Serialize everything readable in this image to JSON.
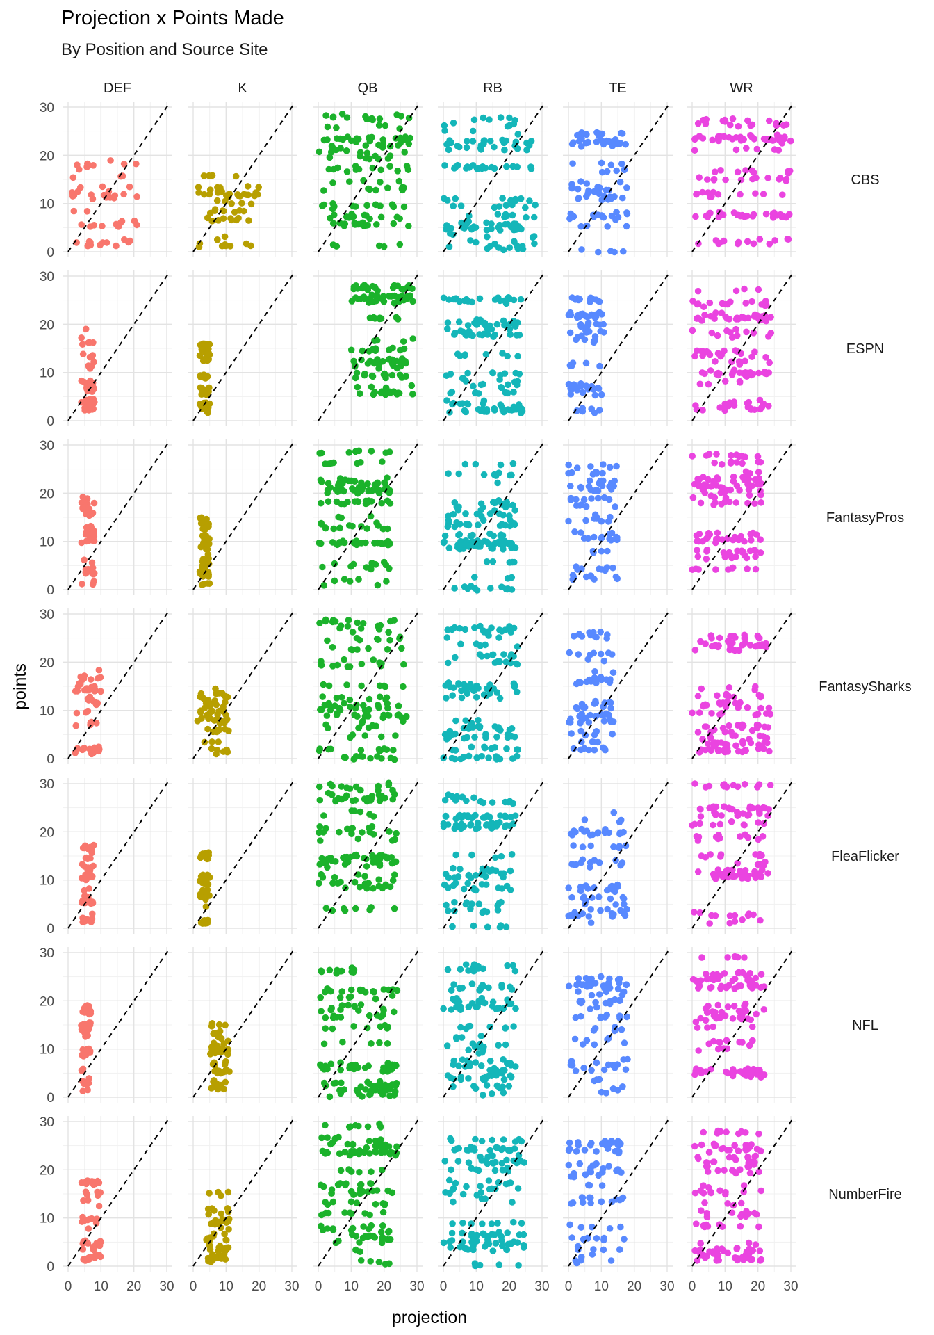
{
  "chart_data": {
    "type": "scatter",
    "title": "Projection x Points Made",
    "subtitle": "By Position and Source Site",
    "xlabel": "projection",
    "ylabel": "points",
    "xlim": [
      0,
      30
    ],
    "ylim": [
      0,
      30
    ],
    "x_ticks": [
      0,
      10,
      20,
      30
    ],
    "y_ticks": [
      0,
      10,
      20,
      30
    ],
    "grid": true,
    "reference_line": "y = x (dashed, black)",
    "facet_columns": [
      "DEF",
      "K",
      "QB",
      "RB",
      "TE",
      "WR"
    ],
    "facet_rows": [
      "CBS",
      "ESPN",
      "FantasyPros",
      "FantasySharks",
      "FleaFlicker",
      "NFL",
      "NumberFire"
    ],
    "position_colors": {
      "DEF": "#f8766d",
      "K": "#b79f00",
      "QB": "#1bb22b",
      "RB": "#14b6b9",
      "TE": "#5889ff",
      "WR": "#ea44e0"
    },
    "panel_ranges": {
      "DEF": {
        "CBS": {
          "x": [
            1,
            21
          ],
          "y": [
            1,
            19
          ]
        },
        "ESPN": {
          "x": [
            4,
            8
          ],
          "y": [
            1,
            19
          ]
        },
        "FantasyPros": {
          "x": [
            4,
            8
          ],
          "y": [
            1,
            19
          ]
        },
        "FantasySharks": {
          "x": [
            2,
            10
          ],
          "y": [
            1,
            19
          ]
        },
        "FleaFlicker": {
          "x": [
            4,
            8
          ],
          "y": [
            1,
            19
          ]
        },
        "NFL": {
          "x": [
            4,
            7
          ],
          "y": [
            1,
            19
          ]
        },
        "NumberFire": {
          "x": [
            4,
            10
          ],
          "y": [
            1,
            19
          ]
        }
      },
      "K": {
        "CBS": {
          "x": [
            1,
            20
          ],
          "y": [
            1,
            16
          ]
        },
        "ESPN": {
          "x": [
            2,
            5
          ],
          "y": [
            1,
            16
          ]
        },
        "FantasyPros": {
          "x": [
            2,
            5
          ],
          "y": [
            1,
            16
          ]
        },
        "FantasySharks": {
          "x": [
            1,
            11
          ],
          "y": [
            1,
            16
          ]
        },
        "FleaFlicker": {
          "x": [
            2,
            5
          ],
          "y": [
            1,
            16
          ]
        },
        "NFL": {
          "x": [
            5,
            11
          ],
          "y": [
            1,
            16
          ]
        },
        "NumberFire": {
          "x": [
            4,
            11
          ],
          "y": [
            1,
            16
          ]
        }
      },
      "QB": {
        "CBS": {
          "x": [
            0,
            28
          ],
          "y": [
            0,
            30
          ]
        },
        "ESPN": {
          "x": [
            10,
            29
          ],
          "y": [
            0,
            30
          ]
        },
        "FantasyPros": {
          "x": [
            0,
            22
          ],
          "y": [
            0,
            30
          ]
        },
        "FantasySharks": {
          "x": [
            0,
            27
          ],
          "y": [
            0,
            30
          ]
        },
        "FleaFlicker": {
          "x": [
            0,
            24
          ],
          "y": [
            0,
            30
          ]
        },
        "NFL": {
          "x": [
            0,
            24
          ],
          "y": [
            0,
            30
          ]
        },
        "NumberFire": {
          "x": [
            0,
            24
          ],
          "y": [
            0,
            30
          ]
        }
      },
      "RB": {
        "CBS": {
          "x": [
            0,
            28
          ],
          "y": [
            0,
            28
          ]
        },
        "ESPN": {
          "x": [
            0,
            24
          ],
          "y": [
            0,
            28
          ]
        },
        "FantasyPros": {
          "x": [
            0,
            22
          ],
          "y": [
            0,
            28
          ]
        },
        "FantasySharks": {
          "x": [
            0,
            23
          ],
          "y": [
            0,
            28
          ]
        },
        "FleaFlicker": {
          "x": [
            0,
            22
          ],
          "y": [
            0,
            28
          ]
        },
        "NFL": {
          "x": [
            0,
            22
          ],
          "y": [
            0,
            28
          ]
        },
        "NumberFire": {
          "x": [
            0,
            25
          ],
          "y": [
            0,
            28
          ]
        }
      },
      "TE": {
        "CBS": {
          "x": [
            0,
            18
          ],
          "y": [
            0,
            26
          ]
        },
        "ESPN": {
          "x": [
            0,
            11
          ],
          "y": [
            0,
            26
          ]
        },
        "FantasyPros": {
          "x": [
            0,
            15
          ],
          "y": [
            0,
            26
          ]
        },
        "FantasySharks": {
          "x": [
            0,
            14
          ],
          "y": [
            0,
            26
          ]
        },
        "FleaFlicker": {
          "x": [
            0,
            18
          ],
          "y": [
            0,
            26
          ]
        },
        "NFL": {
          "x": [
            0,
            18
          ],
          "y": [
            0,
            26
          ]
        },
        "NumberFire": {
          "x": [
            0,
            17
          ],
          "y": [
            0,
            26
          ]
        }
      },
      "WR": {
        "CBS": {
          "x": [
            0,
            30
          ],
          "y": [
            1,
            30
          ]
        },
        "ESPN": {
          "x": [
            0,
            24
          ],
          "y": [
            1,
            30
          ]
        },
        "FantasyPros": {
          "x": [
            0,
            21
          ],
          "y": [
            1,
            30
          ]
        },
        "FantasySharks": {
          "x": [
            0,
            24
          ],
          "y": [
            1,
            30
          ]
        },
        "FleaFlicker": {
          "x": [
            0,
            24
          ],
          "y": [
            1,
            30
          ]
        },
        "NFL": {
          "x": [
            0,
            22
          ],
          "y": [
            1,
            30
          ]
        },
        "NumberFire": {
          "x": [
            0,
            21
          ],
          "y": [
            1,
            30
          ]
        }
      }
    }
  }
}
